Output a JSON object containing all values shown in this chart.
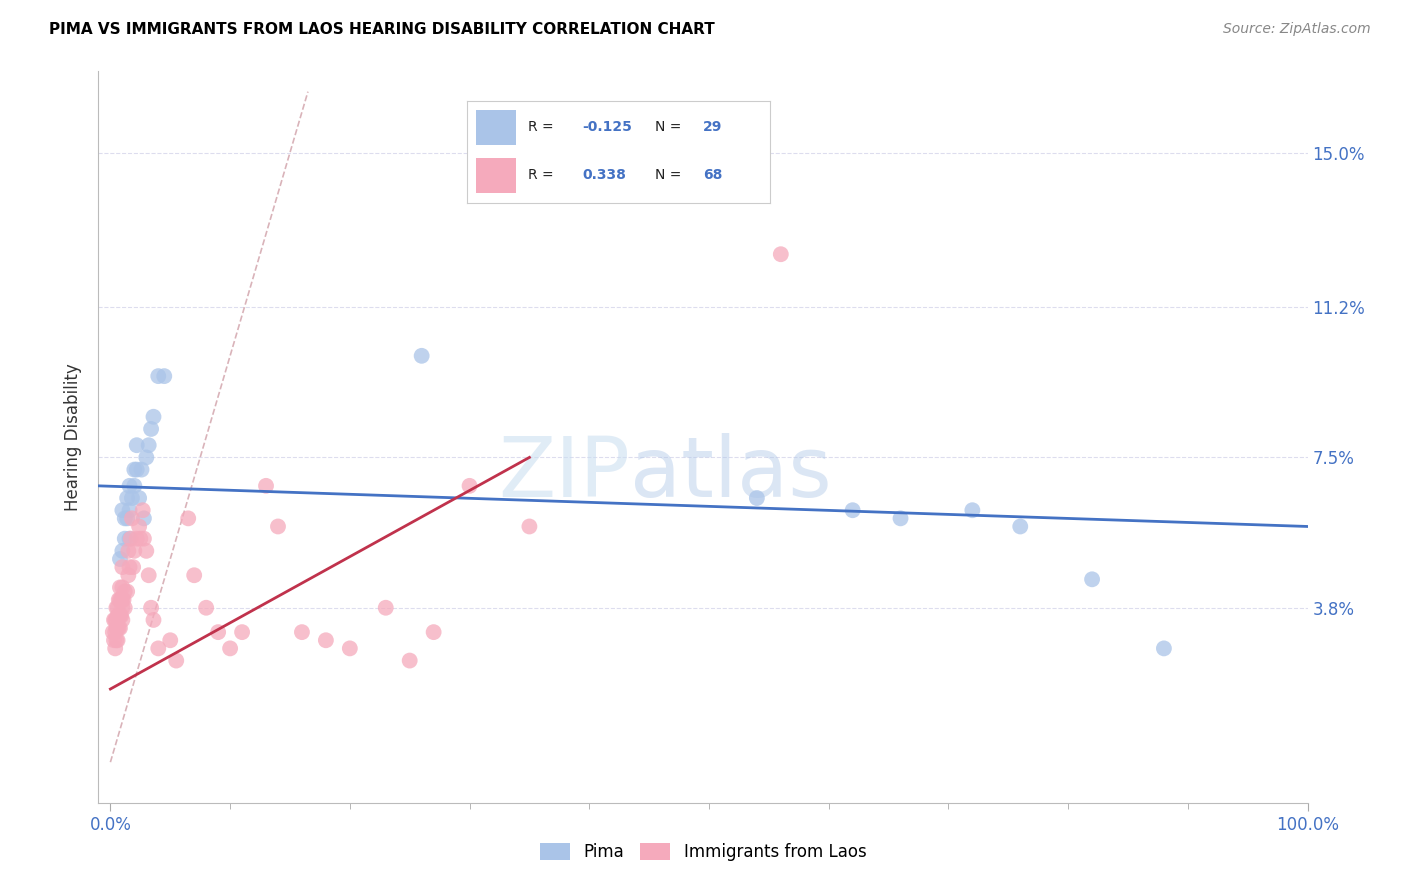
{
  "title": "PIMA VS IMMIGRANTS FROM LAOS HEARING DISABILITY CORRELATION CHART",
  "source": "Source: ZipAtlas.com",
  "ylabel": "Hearing Disability",
  "ytick_labels": [
    "3.8%",
    "7.5%",
    "11.2%",
    "15.0%"
  ],
  "ytick_values": [
    0.038,
    0.075,
    0.112,
    0.15
  ],
  "xlim": [
    -0.01,
    1.0
  ],
  "ylim": [
    -0.01,
    0.17
  ],
  "blue_color": "#aac4e8",
  "pink_color": "#f5aabc",
  "blue_line_color": "#4472c4",
  "pink_line_color": "#c0324c",
  "diagonal_color": "#d0a0a8",
  "watermark_zip": "ZIP",
  "watermark_atlas": "atlas",
  "blue_points_x": [
    0.008,
    0.01,
    0.01,
    0.012,
    0.012,
    0.014,
    0.014,
    0.016,
    0.016,
    0.016,
    0.018,
    0.02,
    0.02,
    0.022,
    0.022,
    0.024,
    0.026,
    0.028,
    0.03,
    0.032,
    0.034,
    0.036,
    0.04,
    0.045,
    0.26,
    0.54,
    0.62,
    0.66,
    0.72,
    0.76,
    0.82,
    0.88
  ],
  "blue_points_y": [
    0.05,
    0.052,
    0.062,
    0.055,
    0.06,
    0.06,
    0.065,
    0.055,
    0.062,
    0.068,
    0.065,
    0.068,
    0.072,
    0.072,
    0.078,
    0.065,
    0.072,
    0.06,
    0.075,
    0.078,
    0.082,
    0.085,
    0.095,
    0.095,
    0.1,
    0.065,
    0.062,
    0.06,
    0.062,
    0.058,
    0.045,
    0.028
  ],
  "pink_points_x": [
    0.002,
    0.003,
    0.003,
    0.004,
    0.004,
    0.004,
    0.005,
    0.005,
    0.005,
    0.005,
    0.006,
    0.006,
    0.006,
    0.006,
    0.007,
    0.007,
    0.007,
    0.008,
    0.008,
    0.008,
    0.008,
    0.009,
    0.009,
    0.01,
    0.01,
    0.01,
    0.01,
    0.01,
    0.011,
    0.012,
    0.012,
    0.014,
    0.015,
    0.015,
    0.016,
    0.017,
    0.018,
    0.019,
    0.02,
    0.022,
    0.024,
    0.025,
    0.027,
    0.028,
    0.03,
    0.032,
    0.034,
    0.036,
    0.04,
    0.05,
    0.055,
    0.065,
    0.07,
    0.08,
    0.09,
    0.1,
    0.11,
    0.13,
    0.14,
    0.16,
    0.18,
    0.2,
    0.23,
    0.25,
    0.27,
    0.3,
    0.35,
    0.56
  ],
  "pink_points_y": [
    0.032,
    0.03,
    0.035,
    0.028,
    0.032,
    0.035,
    0.03,
    0.033,
    0.035,
    0.038,
    0.03,
    0.033,
    0.036,
    0.038,
    0.033,
    0.036,
    0.04,
    0.033,
    0.036,
    0.04,
    0.043,
    0.036,
    0.04,
    0.035,
    0.038,
    0.04,
    0.043,
    0.048,
    0.04,
    0.038,
    0.042,
    0.042,
    0.046,
    0.052,
    0.048,
    0.055,
    0.06,
    0.048,
    0.052,
    0.055,
    0.058,
    0.055,
    0.062,
    0.055,
    0.052,
    0.046,
    0.038,
    0.035,
    0.028,
    0.03,
    0.025,
    0.06,
    0.046,
    0.038,
    0.032,
    0.028,
    0.032,
    0.068,
    0.058,
    0.032,
    0.03,
    0.028,
    0.038,
    0.025,
    0.032,
    0.068,
    0.058,
    0.125
  ]
}
